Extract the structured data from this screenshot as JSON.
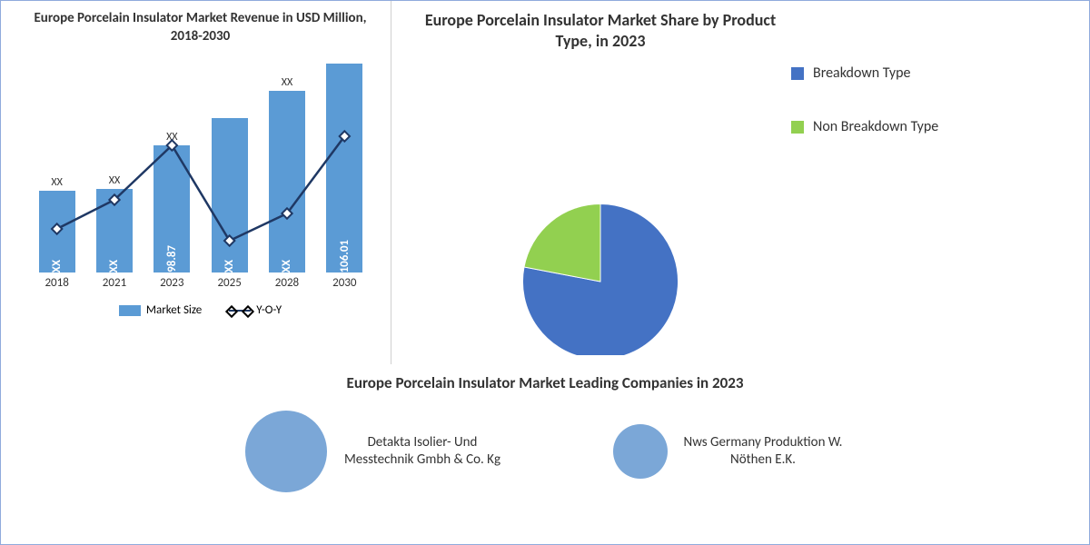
{
  "colors": {
    "bar": "#5b9bd5",
    "line": "#1f3864",
    "pie_main": "#4472c4",
    "pie_secondary": "#92d050",
    "bubble": "#7ba7d7",
    "text": "#333333"
  },
  "bar_chart": {
    "title": "Europe Porcelain Insulator Market Revenue in USD Million, 2018-2030",
    "title_fontsize": 15,
    "categories": [
      "2018",
      "2021",
      "2023",
      "2025",
      "2028",
      "2030"
    ],
    "bar_heights": [
      90,
      92,
      140,
      170,
      200,
      230
    ],
    "bar_values": [
      "XX",
      "XX",
      "98.87",
      "XX",
      "XX",
      "106.01"
    ],
    "top_labels": [
      "XX",
      "XX",
      "XX",
      "",
      "XX",
      ""
    ],
    "bar_color": "#5b9bd5",
    "line_points_y": [
      48,
      80,
      140,
      35,
      65,
      150
    ],
    "line_color": "#1f3864",
    "line_width": 2.5,
    "legend": {
      "market": "Market Size",
      "yoy": "Y-O-Y"
    },
    "label_fontsize": 13
  },
  "pie_chart": {
    "title": "Europe Porcelain Insulator Market Share by Product Type, in 2023",
    "title_fontsize": 18,
    "slices": [
      {
        "label": "Breakdown Type",
        "value": 78,
        "color": "#4472c4"
      },
      {
        "label": "Non Breakdown Type",
        "value": 22,
        "color": "#92d050"
      }
    ],
    "legend_fontsize": 16
  },
  "bottom_section": {
    "title": "Europe Porcelain Insulator Market Leading Companies in 2023",
    "title_fontsize": 17,
    "companies": [
      {
        "name": "Detakta Isolier- Und Messtechnik Gmbh & Co. Kg",
        "bubble_size": 90,
        "color": "#7ba7d7"
      },
      {
        "name": "Nws Germany Produktion W. Nöthen E.K.",
        "bubble_size": 60,
        "color": "#7ba7d7"
      }
    ],
    "label_fontsize": 15
  }
}
